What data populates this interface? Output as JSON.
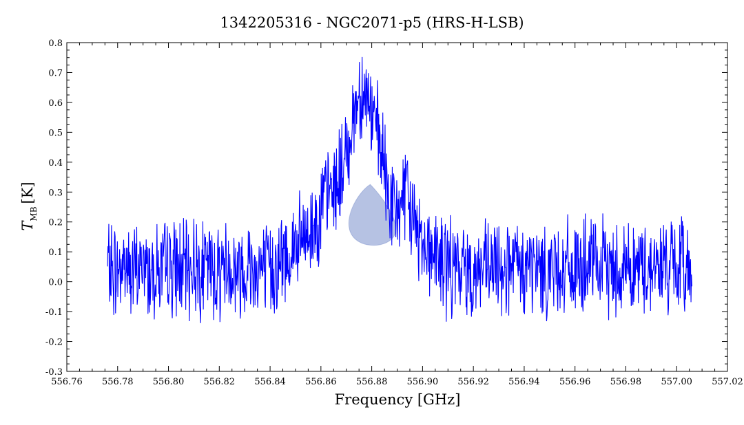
{
  "chart_data": {
    "type": "line",
    "title": "1342205316 - NGC2071-p5 (HRS-H-LSB)",
    "xlabel": "Frequency [GHz]",
    "ylabel_main": "T",
    "ylabel_sub": "MB",
    "ylabel_unit": "[K]",
    "xlim": [
      556.76,
      557.02
    ],
    "ylim": [
      -0.3,
      0.8
    ],
    "x_ticks": [
      "556.76",
      "556.78",
      "556.80",
      "556.82",
      "556.84",
      "556.86",
      "556.88",
      "556.90",
      "556.92",
      "556.94",
      "556.96",
      "556.98",
      "557.00",
      "557.02"
    ],
    "x_tick_values": [
      556.76,
      556.78,
      556.8,
      556.82,
      556.84,
      556.86,
      556.88,
      556.9,
      556.92,
      556.94,
      556.96,
      556.98,
      557.0,
      557.02
    ],
    "y_ticks": [
      "-0.3",
      "-0.2",
      "-0.1",
      "0.0",
      "0.1",
      "0.2",
      "0.3",
      "0.4",
      "0.5",
      "0.6",
      "0.7",
      "0.8"
    ],
    "y_tick_values": [
      -0.3,
      -0.2,
      -0.1,
      0.0,
      0.1,
      0.2,
      0.3,
      0.4,
      0.5,
      0.6,
      0.7,
      0.8
    ],
    "grid": false,
    "line_color": "#0000ff",
    "highlight": {
      "shape": "teardrop",
      "center_x": 556.8805,
      "center_y": 0.215,
      "color": "#2f4fb0",
      "opacity": 0.35
    },
    "series": [
      {
        "x_start": 556.776,
        "x_step": 0.002,
        "values": [
          0.05,
          0.04,
          0.03,
          0.06,
          0.05,
          0.02,
          0.04,
          0.06,
          0.03,
          0.05,
          0.04,
          0.03,
          0.06,
          0.04,
          0.05,
          0.03,
          0.04,
          0.06,
          0.05,
          0.04,
          0.05,
          0.03,
          0.04,
          0.06,
          0.05,
          0.04,
          0.03,
          0.05,
          0.06,
          0.04,
          0.05,
          0.03,
          0.04,
          0.05,
          0.06,
          0.08,
          0.1,
          0.12,
          0.13,
          0.15,
          0.17,
          0.2,
          0.24,
          0.28,
          0.3,
          0.33,
          0.36,
          0.42,
          0.52,
          0.6,
          0.65,
          0.62,
          0.56,
          0.5,
          0.42,
          0.32,
          0.25,
          0.22,
          0.3,
          0.26,
          0.22,
          0.17,
          0.15,
          0.12,
          0.1,
          0.08,
          0.06,
          0.05,
          0.04,
          0.03,
          0.05,
          0.04,
          0.03,
          0.04,
          0.05,
          0.03,
          0.04,
          0.05,
          0.06,
          0.04,
          0.05,
          0.03,
          0.04,
          0.05,
          0.04,
          0.05,
          0.03,
          0.04,
          0.06,
          0.05,
          0.04,
          0.05,
          0.03,
          0.04,
          0.05,
          0.04,
          0.06,
          0.05,
          0.04,
          0.05,
          0.04,
          0.05,
          0.06,
          0.05,
          0.04,
          0.05,
          0.04,
          0.06,
          0.05,
          0.05,
          0.06,
          0.05,
          0.04,
          0.06,
          0.05,
          0.06
        ]
      }
    ]
  }
}
